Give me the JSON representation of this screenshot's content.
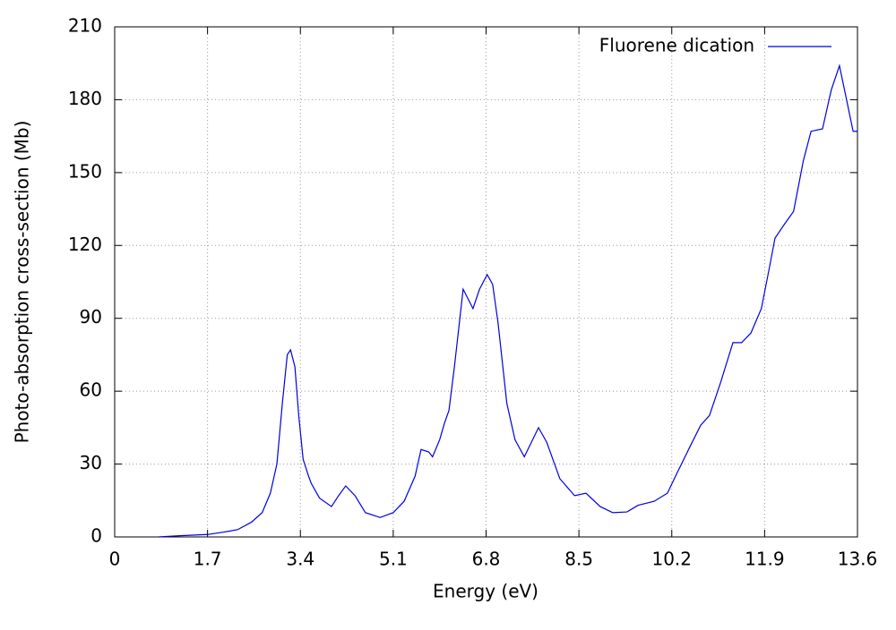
{
  "chart_data": {
    "type": "line",
    "xlabel": "Energy (eV)",
    "ylabel": "Photo-absorption cross-section (Mb)",
    "x": [
      0.8,
      1.2,
      1.7,
      2.0,
      2.25,
      2.5,
      2.7,
      2.85,
      2.97,
      3.07,
      3.16,
      3.22,
      3.3,
      3.37,
      3.45,
      3.55,
      3.6,
      3.75,
      3.97,
      4.1,
      4.23,
      4.4,
      4.59,
      4.86,
      5.1,
      5.3,
      5.5,
      5.61,
      5.75,
      5.82,
      5.95,
      6.04,
      6.12,
      6.22,
      6.38,
      6.47,
      6.56,
      6.68,
      6.82,
      6.92,
      7.02,
      7.18,
      7.33,
      7.5,
      7.76,
      7.91,
      8.15,
      8.42,
      8.63,
      8.89,
      9.12,
      9.38,
      9.58,
      9.88,
      10.12,
      10.29,
      10.53,
      10.73,
      10.89,
      11.1,
      11.32,
      11.48,
      11.65,
      11.84,
      11.98,
      12.09,
      12.27,
      12.43,
      12.61,
      12.75,
      12.96,
      13.12,
      13.27,
      13.4,
      13.52,
      13.6
    ],
    "series": [
      {
        "name": "Fluorene dication",
        "color": "#0000e0",
        "values": [
          0,
          0.5,
          1,
          2,
          3,
          6,
          10,
          18,
          30,
          55,
          75,
          77,
          70,
          50,
          32,
          25,
          22,
          16,
          12.5,
          17,
          21,
          17,
          10,
          8,
          10,
          14.7,
          25,
          36,
          35,
          33,
          40,
          47,
          52,
          70,
          102,
          98,
          94,
          102,
          108,
          104,
          88,
          55,
          40,
          33,
          45,
          39,
          24,
          17,
          18,
          12.5,
          10,
          10.3,
          13,
          14.7,
          18,
          26,
          37,
          46,
          50,
          64,
          80,
          80,
          84,
          94,
          110,
          123,
          129,
          134,
          155,
          167,
          168,
          184,
          194,
          180,
          167,
          167
        ]
      }
    ],
    "xlim": [
      0,
      13.6
    ],
    "xticks": [
      0,
      1.7,
      3.4,
      5.1,
      6.8,
      8.5,
      10.2,
      11.9,
      13.6
    ],
    "ylim": [
      0,
      210
    ],
    "yticks": [
      0,
      30,
      60,
      90,
      120,
      150,
      180,
      210
    ],
    "grid": true,
    "legend": "top-right"
  }
}
